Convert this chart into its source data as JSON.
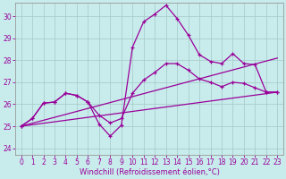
{
  "xlabel": "Windchill (Refroidissement éolien,°C)",
  "background_color": "#c8ecec",
  "line_color": "#990099",
  "grid_color": "#aacccc",
  "ylim": [
    23.7,
    30.6
  ],
  "xlim": [
    -0.5,
    23.5
  ],
  "yticks": [
    24,
    25,
    26,
    27,
    28,
    29,
    30
  ],
  "xticks": [
    0,
    1,
    2,
    3,
    4,
    5,
    6,
    7,
    8,
    9,
    10,
    11,
    12,
    13,
    14,
    15,
    16,
    17,
    18,
    19,
    20,
    21,
    22,
    23
  ],
  "series1_x": [
    0,
    1,
    2,
    3,
    4,
    5,
    6,
    7,
    8,
    9,
    10,
    11,
    12,
    13,
    14,
    15,
    16,
    17,
    18,
    19,
    20,
    21,
    22,
    23
  ],
  "series1_y": [
    25.0,
    25.35,
    26.05,
    26.1,
    26.5,
    26.4,
    26.1,
    25.1,
    24.55,
    25.05,
    28.6,
    29.75,
    30.1,
    30.5,
    29.9,
    29.15,
    28.25,
    27.95,
    27.85,
    28.3,
    27.85,
    27.8,
    26.55,
    26.55
  ],
  "series2_x": [
    0,
    1,
    2,
    3,
    4,
    5,
    6,
    7,
    8,
    9,
    10,
    11,
    12,
    13,
    14,
    15,
    16,
    17,
    18,
    19,
    20,
    21,
    22,
    23
  ],
  "series2_y": [
    25.0,
    25.35,
    26.05,
    26.1,
    26.5,
    26.4,
    26.1,
    25.5,
    25.15,
    25.35,
    26.5,
    27.1,
    27.45,
    27.85,
    27.85,
    27.55,
    27.15,
    27.0,
    26.8,
    27.0,
    26.95,
    26.75,
    26.55,
    26.55
  ],
  "line1_x": [
    0,
    23
  ],
  "line1_y": [
    25.0,
    26.55
  ],
  "line2_x": [
    0,
    23
  ],
  "line2_y": [
    25.0,
    28.1
  ],
  "tick_fontsize": 5.5,
  "xlabel_fontsize": 6.0
}
